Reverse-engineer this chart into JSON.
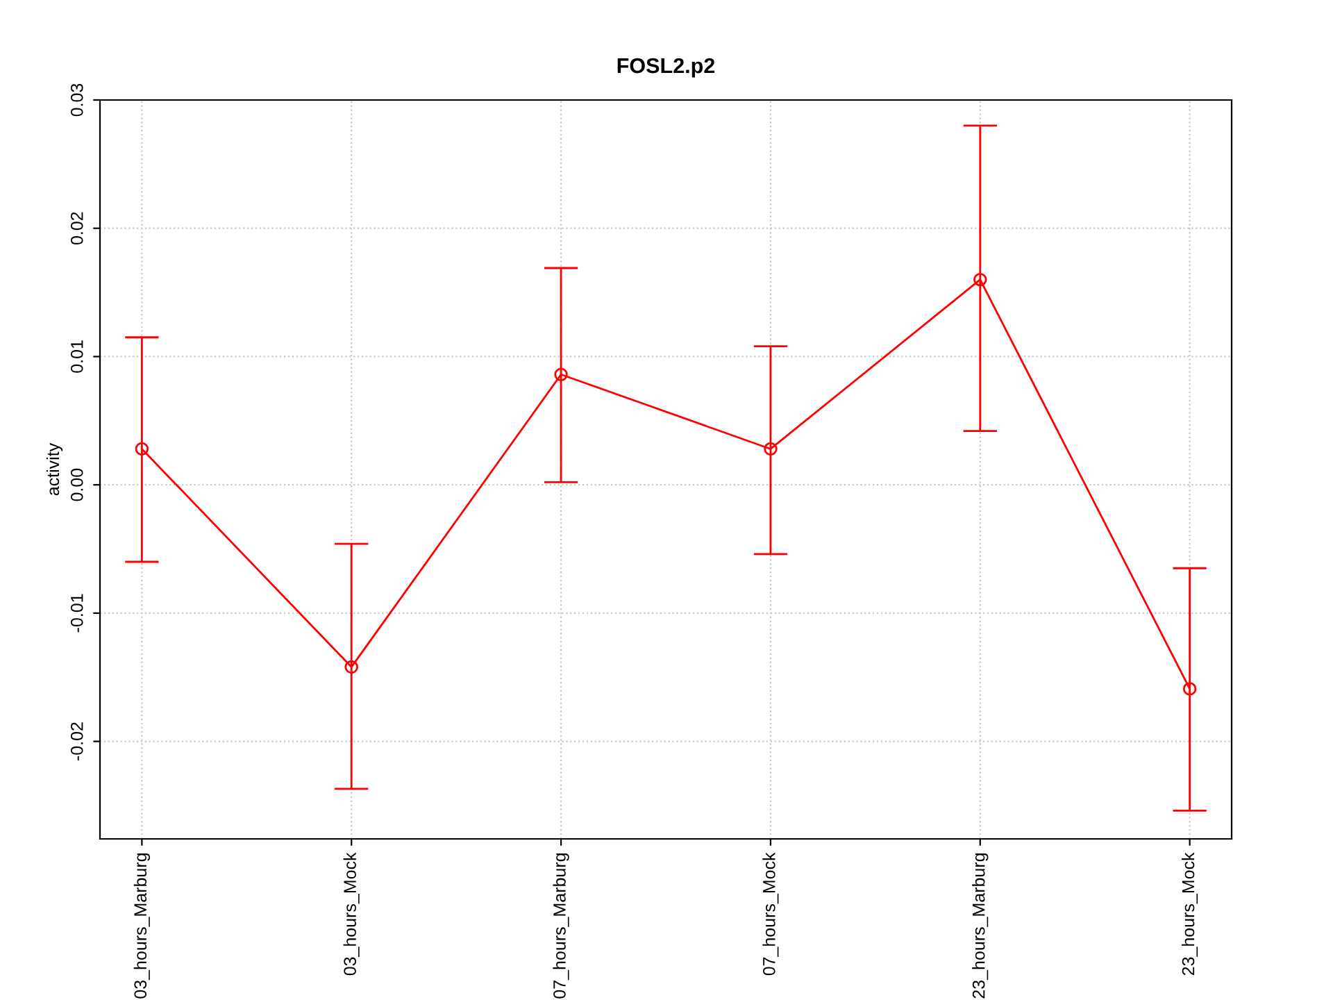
{
  "chart_data": {
    "type": "line",
    "title": "FOSL2.p2",
    "ylabel": "activity",
    "categories": [
      "03_hours_Marburg",
      "03_hours_Mock",
      "07_hours_Marburg",
      "07_hours_Mock",
      "23_hours_Marburg",
      "23_hours_Mock"
    ],
    "series": [
      {
        "color": "#ff0000",
        "values": [
          0.0028,
          -0.0142,
          0.0086,
          0.0028,
          0.016,
          -0.0159
        ],
        "errors": [
          [
            -0.006,
            0.0115
          ],
          [
            -0.0237,
            -0.0046
          ],
          [
            0.0002,
            0.0169
          ],
          [
            -0.0054,
            0.0108
          ],
          [
            0.0042,
            0.028
          ],
          [
            -0.0254,
            -0.0065
          ]
        ]
      }
    ],
    "ylim": [
      -0.0276,
      0.03
    ],
    "yticks": [
      {
        "value": -0.02,
        "label": "-0.02"
      },
      {
        "value": -0.01,
        "label": "-0.01"
      },
      {
        "value": 0.0,
        "label": "0.00"
      },
      {
        "value": 0.01,
        "label": "0.01"
      },
      {
        "value": 0.02,
        "label": "0.02"
      },
      {
        "value": 0.03,
        "label": "0.03"
      }
    ],
    "grid": true,
    "marker": "circle",
    "line_style": "solid"
  }
}
